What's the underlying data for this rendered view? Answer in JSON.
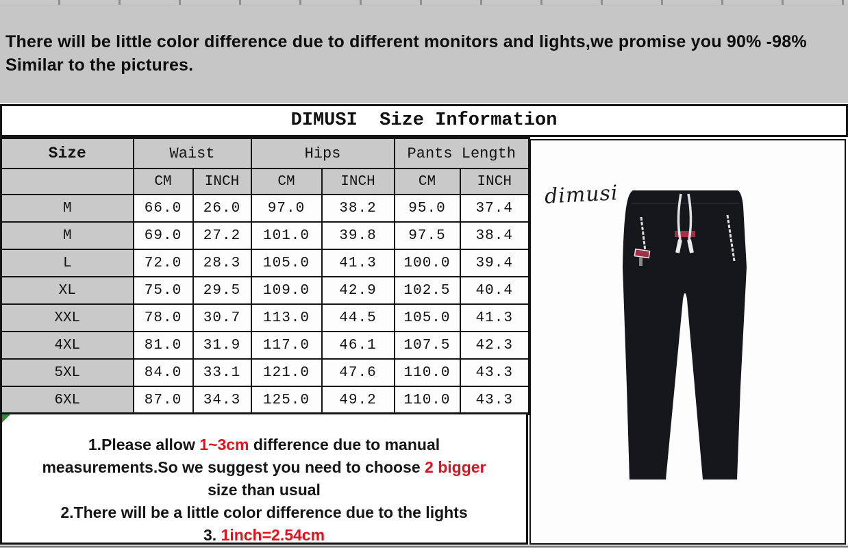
{
  "top_banner": {
    "line1": "There will be little color difference due to different monitors and lights,we promise you 90% -98%",
    "line2": "Similar to the pictures."
  },
  "size_table": {
    "title": "DIMUSI  Size Information",
    "col_groups": [
      {
        "label": "Size",
        "sub": []
      },
      {
        "label": "Waist",
        "sub": [
          "CM",
          "INCH"
        ]
      },
      {
        "label": "Hips",
        "sub": [
          "CM",
          "INCH"
        ]
      },
      {
        "label": "Pants Length",
        "sub": [
          "CM",
          "INCH"
        ]
      }
    ],
    "rows": [
      {
        "size": "M",
        "values": [
          "66.0",
          "26.0",
          "97.0",
          "38.2",
          "95.0",
          "37.4"
        ]
      },
      {
        "size": "M",
        "values": [
          "69.0",
          "27.2",
          "101.0",
          "39.8",
          "97.5",
          "38.4"
        ]
      },
      {
        "size": "L",
        "values": [
          "72.0",
          "28.3",
          "105.0",
          "41.3",
          "100.0",
          "39.4"
        ]
      },
      {
        "size": "XL",
        "values": [
          "75.0",
          "29.5",
          "109.0",
          "42.9",
          "102.5",
          "40.4"
        ]
      },
      {
        "size": "XXL",
        "values": [
          "78.0",
          "30.7",
          "113.0",
          "44.5",
          "105.0",
          "41.3"
        ]
      },
      {
        "size": "4XL",
        "values": [
          "81.0",
          "31.9",
          "117.0",
          "46.1",
          "107.5",
          "42.3"
        ]
      },
      {
        "size": "5XL",
        "values": [
          "84.0",
          "33.1",
          "121.0",
          "47.6",
          "110.0",
          "43.3"
        ]
      },
      {
        "size": "6XL",
        "values": [
          "87.0",
          "34.3",
          "125.0",
          "49.2",
          "110.0",
          "43.3"
        ]
      }
    ]
  },
  "notes": {
    "lines": [
      [
        {
          "t": "1.Please allow "
        },
        {
          "t": "1~3cm",
          "red": true
        },
        {
          "t": " difference due to manual"
        }
      ],
      [
        {
          "t": "measurements.So we suggest you need to choose "
        },
        {
          "t": "2 bigger",
          "red": true
        }
      ],
      [
        {
          "t": "size than usual"
        }
      ],
      [
        {
          "t": "2.There will be a little color difference due to the lights"
        }
      ],
      [
        {
          "t": "3. "
        },
        {
          "t": "1inch=2.54cm",
          "red": true
        }
      ]
    ]
  },
  "product_panel": {
    "brand": "dimusi"
  },
  "colors": {
    "banner_bg": "#c6c6c6",
    "header_bg": "#c9c9c9",
    "border_black": "#141414",
    "highlight_red": "#e3101c",
    "pants_black": "#16161d",
    "drawstring_white": "#e2e2e2",
    "tag_red": "#a23046",
    "corner_green": "#2e8b3d"
  }
}
